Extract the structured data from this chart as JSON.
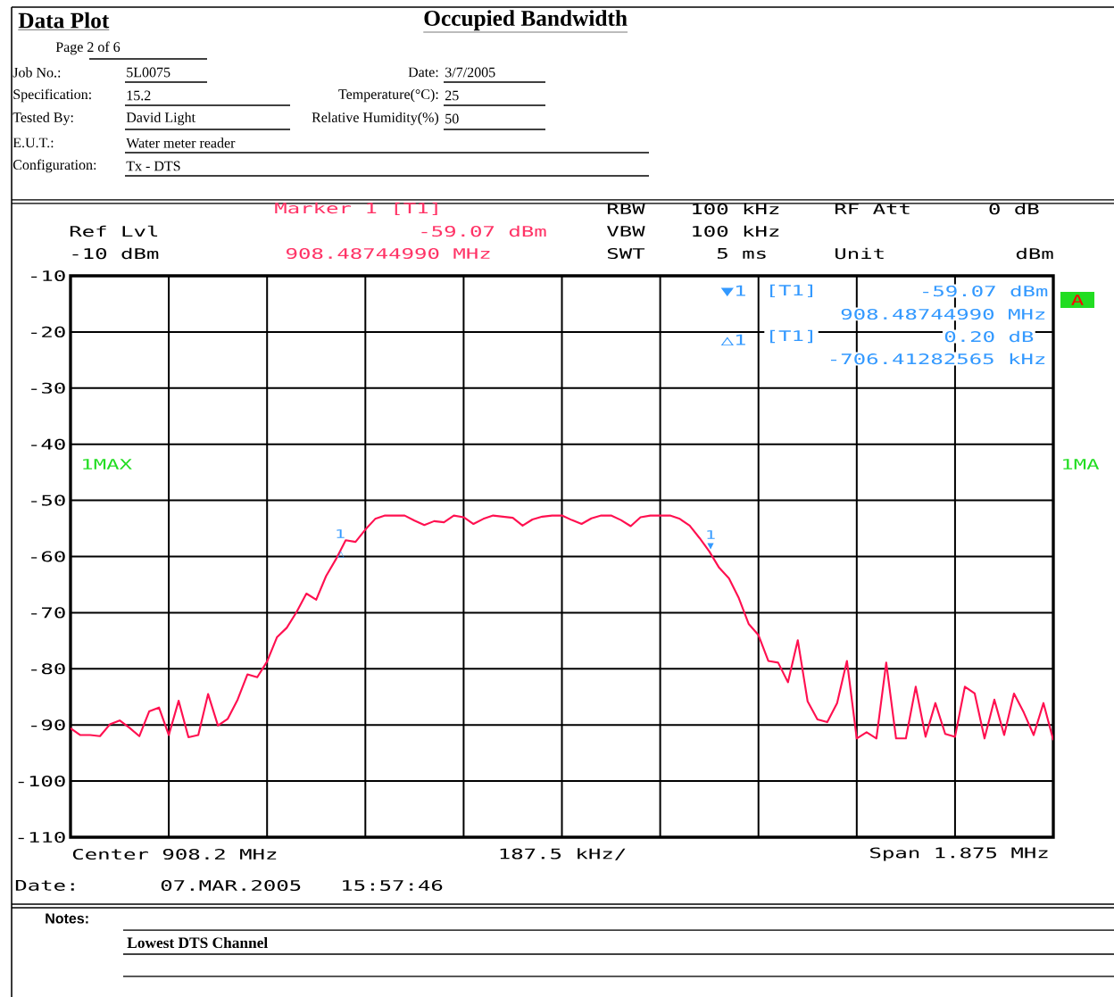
{
  "chart_data": {
    "type": "line",
    "title": "Occupied Bandwidth",
    "categories": [
      null,
      null,
      null,
      null,
      null,
      null,
      null,
      null,
      null,
      null,
      null,
      null,
      null,
      null,
      null,
      null,
      null,
      null,
      null,
      null,
      null,
      null,
      null,
      null,
      null,
      null,
      null,
      null,
      null,
      null,
      null,
      null,
      null,
      null,
      null,
      null,
      null,
      null,
      null,
      null,
      null,
      null,
      null,
      null,
      null,
      null,
      null,
      null,
      null,
      null,
      null,
      null,
      null,
      null,
      null,
      null,
      null,
      null,
      null,
      null,
      null,
      null,
      null,
      null,
      null,
      null,
      null,
      null,
      null,
      null,
      null,
      null,
      null,
      null,
      null,
      null,
      null,
      null,
      null,
      null,
      null,
      null,
      null,
      null,
      null,
      null,
      null,
      null,
      null,
      null,
      null,
      null,
      null,
      null,
      null,
      null,
      null,
      null,
      null,
      null,
      null
    ],
    "ylim": [
      -110,
      -10
    ],
    "yticks": [
      -10,
      -20,
      -30,
      -40,
      -50,
      -60,
      -70,
      -80,
      -90,
      -100,
      -110
    ],
    "grid": true,
    "tick_labels": "y",
    "marker": "none",
    "line_style": "solid",
    "series": [
      {
        "color": "#ff1050",
        "values": [
          -90.6,
          -91.8,
          -91.8,
          -92.0,
          -89.9,
          -89.2,
          -90.5,
          -92.0,
          -87.6,
          -86.9,
          -91.8,
          -85.7,
          -92.2,
          -91.8,
          -84.5,
          -90.1,
          -88.9,
          -85.5,
          -81.0,
          -81.5,
          -78.7,
          -74.4,
          -72.7,
          -69.9,
          -66.6,
          -67.7,
          -63.5,
          -60.5,
          -57.1,
          -57.4,
          -55.2,
          -53.3,
          -52.7,
          -52.7,
          -52.7,
          -53.6,
          -54.4,
          -53.7,
          -53.9,
          -52.7,
          -53.0,
          -54.2,
          -53.3,
          -52.7,
          -52.9,
          -53.1,
          -54.5,
          -53.4,
          -52.9,
          -52.7,
          -52.7,
          -53.5,
          -54.2,
          -53.2,
          -52.7,
          -52.7,
          -53.5,
          -54.6,
          -53.0,
          -52.7,
          -52.7,
          -52.7,
          -53.3,
          -54.5,
          -56.7,
          -59.1,
          -62.0,
          -63.9,
          -67.4,
          -72.0,
          -74.0,
          -78.6,
          -78.9,
          -82.4,
          -74.9,
          -85.8,
          -89.0,
          -89.5,
          -86.1,
          -78.6,
          -92.4,
          -91.3,
          -92.4,
          -78.9,
          -92.4,
          -92.4,
          -83.2,
          -92.1,
          -86.1,
          -91.6,
          -92.1,
          -83.2,
          -84.4,
          -92.4,
          -85.5,
          -91.8,
          -84.4,
          -87.8,
          -91.8,
          -86.1,
          -92.7
        ]
      }
    ],
    "annotations": [
      "Data Plot",
      "Page 2 of 6",
      "Job No.:",
      "5L0075",
      "Date:",
      "3/7/2005",
      "Specification:",
      "15.2",
      "Temperature(°C):",
      "25",
      "Tested By:",
      "David Light",
      "Relative Humidity(%)",
      "50",
      "E.U.T.:",
      "Water meter reader",
      "Configuration:",
      "Tx - DTS",
      "Marker 1 [T1]",
      "-59.07 dBm",
      "908.48744990 MHz",
      "Ref Lvl",
      "-10 dBm",
      "RBW",
      "100 kHz",
      "VBW",
      "100 kHz",
      "SWT",
      "5 ms",
      "RF Att",
      "0 dB",
      "Unit",
      "dBm",
      "▼1",
      "[T1]",
      "-59.07 dBm",
      "908.48744990 MHz",
      "△1",
      "[T1]",
      "0.20 dB",
      "-706.41282565 kHz",
      "1MAX",
      "1MA",
      "A",
      "Center 908.2 MHz",
      "187.5 kHz/",
      "Span 1.875 MHz",
      "Date:",
      "07.MAR.2005",
      "15:57:46",
      "Notes:",
      "Lowest DTS Channel",
      "1",
      "1",
      "▼",
      "△"
    ]
  }
}
